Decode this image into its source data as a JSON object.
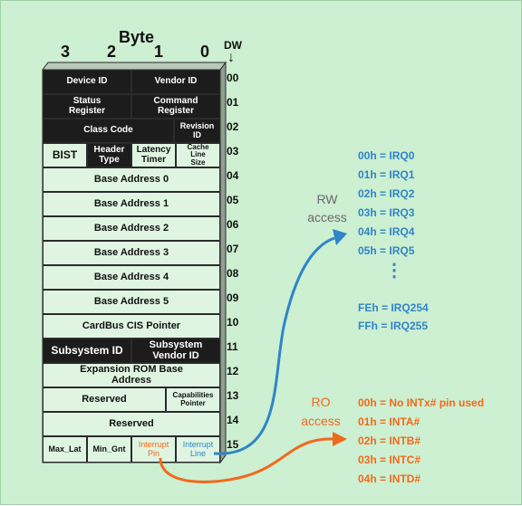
{
  "header": {
    "byte_label": "Byte",
    "byte_numbers": [
      "3",
      "2",
      "1",
      "0"
    ],
    "dw_label": "DW",
    "dw_arrow": "↓"
  },
  "registers": {
    "device_id": "Device ID",
    "vendor_id": "Vendor ID",
    "status_register": "Status Register",
    "command_register": "Command Register",
    "class_code": "Class Code",
    "revision_id": "Revision ID",
    "bist": "BIST",
    "header_type": "Header Type",
    "latency_timer": "Latency Timer",
    "cache_line_size": "Cache Line Size",
    "base_address_0": "Base Address 0",
    "base_address_1": "Base Address 1",
    "base_address_2": "Base Address 2",
    "base_address_3": "Base Address 3",
    "base_address_4": "Base Address 4",
    "base_address_5": "Base Address 5",
    "cardbus_cis_pointer": "CardBus CIS Pointer",
    "subsystem_id": "Subsystem ID",
    "subsystem_vendor_id": "Subsystem Vendor ID",
    "expansion_rom_base_address": "Expansion ROM Base Address",
    "reserved_1": "Reserved",
    "capabilities_pointer": "Capabilities Pointer",
    "reserved_2": "Reserved",
    "max_lat": "Max_Lat",
    "min_gnt": "Min_Gnt",
    "interrupt_pin": "Interrupt Pin",
    "interrupt_line": "Interrupt Line"
  },
  "dw_numbers": [
    "00",
    "01",
    "02",
    "03",
    "04",
    "05",
    "06",
    "07",
    "08",
    "09",
    "10",
    "11",
    "12",
    "13",
    "14",
    "15"
  ],
  "rw": {
    "label_1": "RW",
    "label_2": "access",
    "values": [
      "00h = IRQ0",
      "01h = IRQ1",
      "02h = IRQ2",
      "03h = IRQ3",
      "04h = IRQ4",
      "05h = IRQ5"
    ],
    "ellipsis": "⋮",
    "tail_values": [
      "FEh = IRQ254",
      "FFh = IRQ255"
    ]
  },
  "ro": {
    "label_1": "RO",
    "label_2": "access",
    "values": [
      "00h = No INTx# pin used",
      "01h = INTA#",
      "02h = INTB#",
      "03h = INTC#",
      "04h = INTD#"
    ]
  },
  "colors": {
    "background": "#cdefd2",
    "blue": "#2f85c8",
    "orange": "#f06a1c",
    "dark_cell": "#1c1c1c"
  }
}
